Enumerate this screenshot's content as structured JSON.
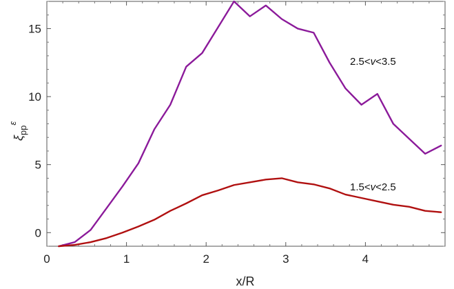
{
  "chart_data": {
    "type": "line",
    "xlabel": "x/R",
    "ylabel": {
      "base": "ξ",
      "sub": "pp",
      "sup": "ε"
    },
    "xlim": [
      0,
      5
    ],
    "ylim": [
      -1,
      17
    ],
    "xticks": [
      0,
      1,
      2,
      3,
      4
    ],
    "yticks": [
      0,
      5,
      10,
      15
    ],
    "grid": false,
    "series": [
      {
        "name": "2.5<v<3.5",
        "label_parts": [
          "2.5<",
          "v",
          "<3.5"
        ],
        "color": "#8B1A9A",
        "x": [
          0.15,
          0.35,
          0.55,
          0.75,
          0.95,
          1.15,
          1.35,
          1.55,
          1.75,
          1.95,
          2.15,
          2.35,
          2.55,
          2.75,
          2.95,
          3.15,
          3.35,
          3.55,
          3.75,
          3.95,
          4.15,
          4.35,
          4.55,
          4.75,
          4.95
        ],
        "values": [
          -1.0,
          -0.7,
          0.2,
          1.8,
          3.4,
          5.1,
          7.6,
          9.4,
          12.2,
          13.2,
          15.1,
          17.0,
          15.9,
          16.7,
          15.7,
          15.0,
          14.7,
          12.5,
          10.6,
          9.4,
          10.2,
          8.0,
          6.9,
          5.8,
          6.4
        ]
      },
      {
        "name": "1.5<v<2.5",
        "label_parts": [
          "1.5<",
          "v",
          "<2.5"
        ],
        "color": "#B01010",
        "x": [
          0.15,
          0.35,
          0.55,
          0.75,
          0.95,
          1.15,
          1.35,
          1.55,
          1.75,
          1.95,
          2.15,
          2.35,
          2.55,
          2.75,
          2.95,
          3.15,
          3.35,
          3.55,
          3.75,
          3.95,
          4.15,
          4.35,
          4.55,
          4.75,
          4.95
        ],
        "values": [
          -1.0,
          -0.9,
          -0.7,
          -0.4,
          0.0,
          0.45,
          0.95,
          1.6,
          2.15,
          2.75,
          3.1,
          3.5,
          3.7,
          3.9,
          4.0,
          3.7,
          3.55,
          3.25,
          2.8,
          2.55,
          2.3,
          2.05,
          1.9,
          1.6,
          1.5
        ]
      }
    ]
  }
}
